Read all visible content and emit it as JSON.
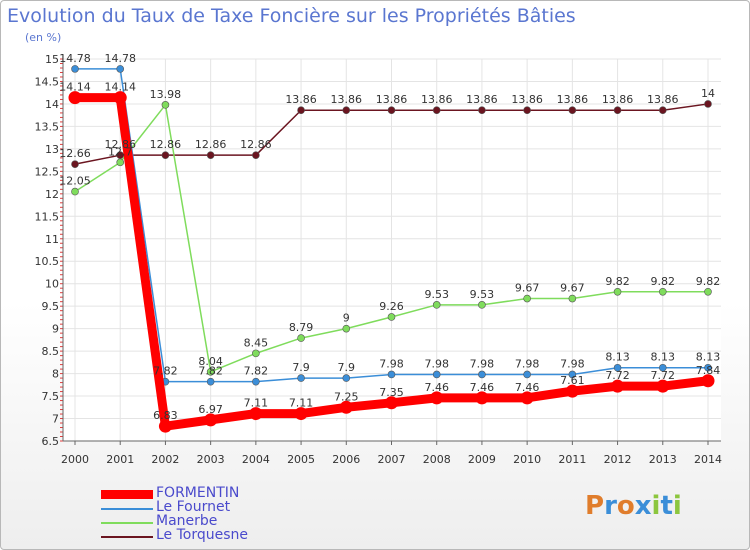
{
  "title": "Evolution du Taux de Taxe Foncière sur les Propriétés Bâties",
  "unit_label": "(en %)",
  "logo": {
    "text": "Proxiti",
    "colors": [
      "#e07d2c",
      "#3b8ed8",
      "#e07d2c",
      "#3b8ed8",
      "#8cc63e",
      "#3b8ed8",
      "#8cc63e"
    ]
  },
  "chart_data": {
    "type": "line",
    "x": [
      "2000",
      "2001",
      "2002",
      "2003",
      "2004",
      "2005",
      "2006",
      "2007",
      "2008",
      "2009",
      "2010",
      "2011",
      "2012",
      "2013",
      "2014"
    ],
    "ylim": [
      6.5,
      15
    ],
    "yticks": [
      "6.5",
      "7",
      "7.5",
      "8",
      "8.5",
      "9",
      "9.5",
      "10",
      "10.5",
      "11",
      "11.5",
      "12",
      "12.5",
      "13",
      "13.5",
      "14",
      "14.5",
      "15"
    ],
    "grid": true,
    "series": [
      {
        "name": "FORMENTIN",
        "color": "#ff0000",
        "values": [
          14.14,
          14.14,
          6.83,
          6.97,
          7.11,
          7.11,
          7.25,
          7.35,
          7.46,
          7.46,
          7.46,
          7.61,
          7.72,
          7.72,
          7.84
        ],
        "labels": [
          "14.14",
          "14.14",
          "6.83",
          "6.97",
          "7.11",
          "7.11",
          "7.25",
          "7.35",
          "7.46",
          "7.46",
          "7.46",
          "7.61",
          "7.72",
          "7.72",
          "7.84"
        ]
      },
      {
        "name": "Le Fournet",
        "color": "#3b8ed8",
        "values": [
          14.78,
          14.78,
          7.82,
          7.82,
          7.82,
          7.9,
          7.9,
          7.98,
          7.98,
          7.98,
          7.98,
          7.98,
          8.13,
          8.13,
          8.13
        ],
        "labels": [
          "14.78",
          "14.78",
          "7.82",
          "7.82",
          "7.82",
          "7.9",
          "7.9",
          "7.98",
          "7.98",
          "7.98",
          "7.98",
          "7.98",
          "8.13",
          "8.13",
          "8.13"
        ]
      },
      {
        "name": "Manerbe",
        "color": "#7fdc5c",
        "values": [
          12.05,
          12.7,
          13.98,
          8.04,
          8.45,
          8.79,
          9,
          9.26,
          9.53,
          9.53,
          9.67,
          9.67,
          9.82,
          9.82,
          9.82
        ],
        "labels": [
          "12.05",
          "12.7",
          "13.98",
          "8.04",
          "8.45",
          "8.79",
          "9",
          "9.26",
          "9.53",
          "9.53",
          "9.67",
          "9.67",
          "9.82",
          "9.82",
          "9.82"
        ]
      },
      {
        "name": "Le Torquesne",
        "color": "#6b1520",
        "values": [
          12.66,
          12.86,
          12.86,
          12.86,
          12.86,
          13.86,
          13.86,
          13.86,
          13.86,
          13.86,
          13.86,
          13.86,
          13.86,
          13.86,
          14
        ],
        "labels": [
          "12.66",
          "12.86",
          "12.86",
          "12.86",
          "12.86",
          "13.86",
          "13.86",
          "13.86",
          "13.86",
          "13.86",
          "13.86",
          "13.86",
          "13.86",
          "13.86",
          "14"
        ]
      }
    ]
  }
}
